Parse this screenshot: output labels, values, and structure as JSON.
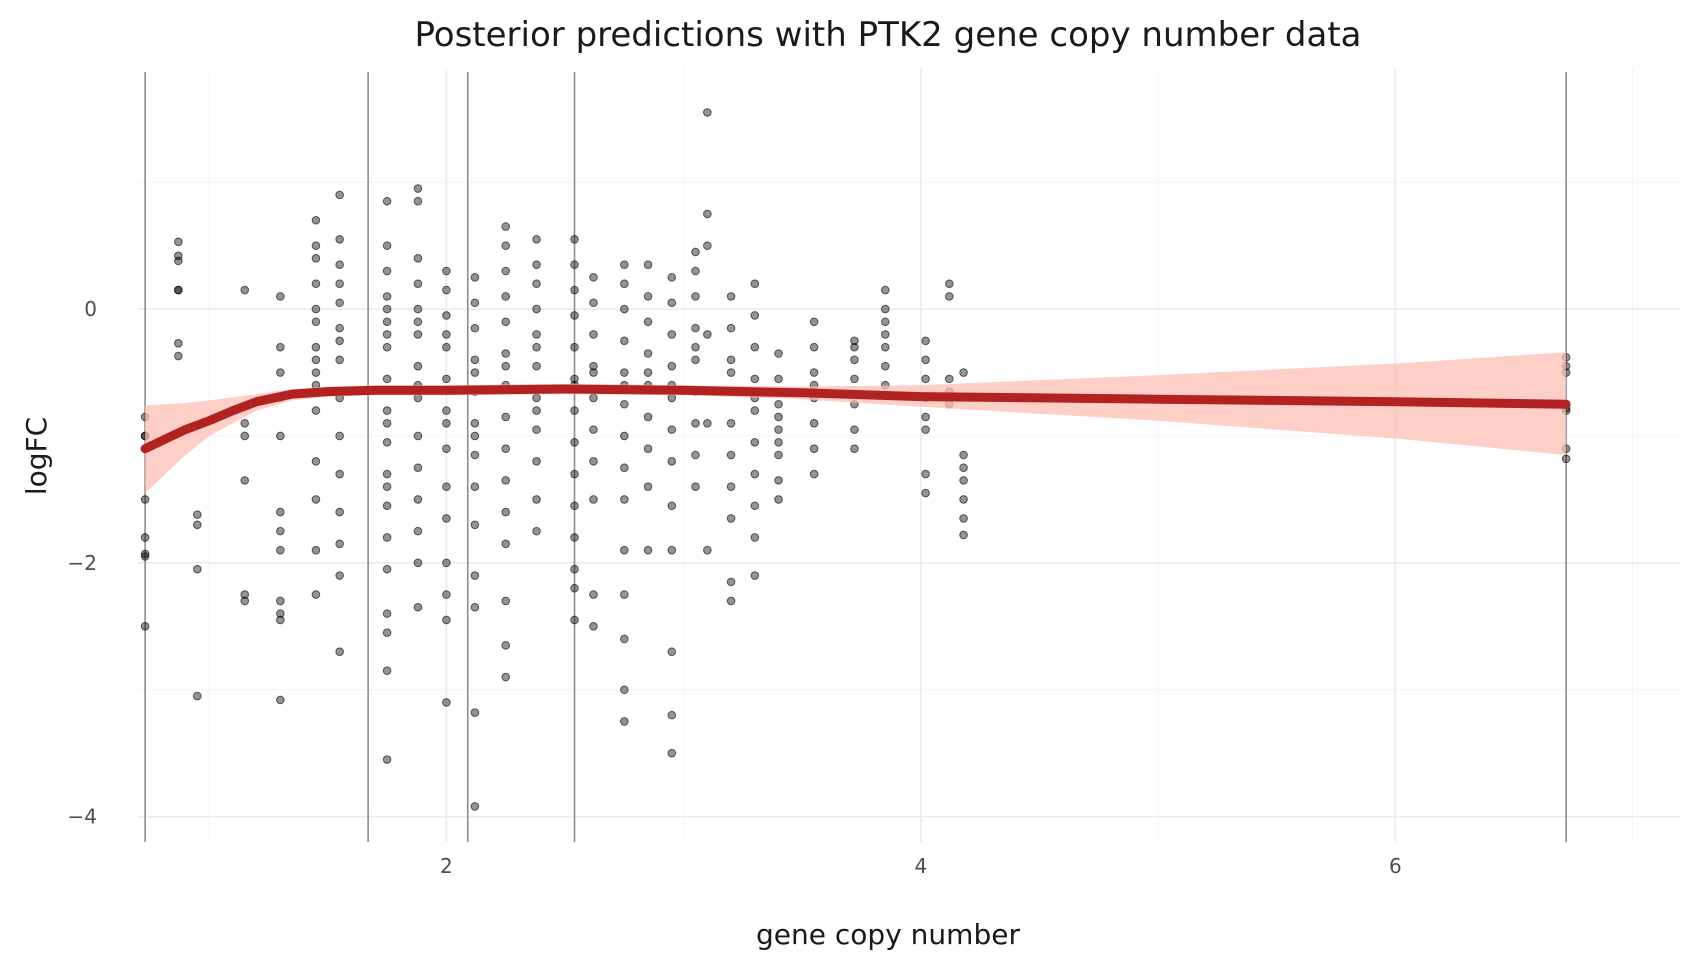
{
  "chart_data": {
    "type": "scatter",
    "title": "Posterior predictions with PTK2 gene copy number data",
    "xlabel": "gene copy number",
    "ylabel": "logFC",
    "xlim": [
      0.7,
      7.2
    ],
    "ylim": [
      -4.2,
      1.9
    ],
    "x_ticks": [
      2,
      4,
      6
    ],
    "y_ticks": [
      0,
      -2,
      -4
    ],
    "x_tick_labels": [
      "2",
      "4",
      "6"
    ],
    "y_tick_labels": [
      "0",
      "−2",
      "−4"
    ],
    "grid": true,
    "legend": "none",
    "colors": {
      "points": "#000000",
      "ribbon": "#fcbfb4",
      "trend_line": "#b22222",
      "vertical_lines": "#8c8c8c",
      "grid": "#ebebeb"
    },
    "vertical_lines": [
      0.73,
      1.67,
      2.09,
      2.54,
      6.72
    ],
    "trend_line": {
      "x": [
        0.73,
        0.9,
        1.0,
        1.1,
        1.2,
        1.35,
        1.5,
        1.7,
        2.0,
        2.5,
        3.0,
        3.5,
        4.0,
        5.0,
        6.0,
        6.72
      ],
      "y": [
        -1.1,
        -0.95,
        -0.88,
        -0.8,
        -0.73,
        -0.67,
        -0.65,
        -0.64,
        -0.64,
        -0.63,
        -0.64,
        -0.66,
        -0.69,
        -0.71,
        -0.73,
        -0.75
      ]
    },
    "ribbon": {
      "x": [
        0.73,
        0.9,
        1.0,
        1.2,
        1.35,
        1.5,
        1.7,
        2.0,
        2.5,
        3.0,
        3.5,
        4.0,
        5.0,
        6.0,
        6.72
      ],
      "lower": [
        -1.45,
        -1.15,
        -1.0,
        -0.8,
        -0.72,
        -0.69,
        -0.68,
        -0.68,
        -0.67,
        -0.68,
        -0.71,
        -0.77,
        -0.88,
        -1.02,
        -1.15
      ],
      "upper": [
        -0.76,
        -0.74,
        -0.72,
        -0.67,
        -0.63,
        -0.61,
        -0.6,
        -0.6,
        -0.59,
        -0.6,
        -0.61,
        -0.6,
        -0.52,
        -0.43,
        -0.34
      ]
    },
    "point_groups": [
      {
        "x": 0.73,
        "y": [
          -0.85,
          -1.0,
          -1.5,
          -1.8,
          -1.95,
          -2.5,
          -1.0,
          -1.93
        ]
      },
      {
        "x": 0.87,
        "y": [
          0.53,
          0.42,
          0.38,
          0.15,
          -0.27,
          -0.37,
          0.15
        ]
      },
      {
        "x": 0.95,
        "y": [
          -1.62,
          -1.7,
          -2.05,
          -3.05
        ]
      },
      {
        "x": 1.15,
        "y": [
          0.15,
          -0.9,
          -1.35,
          -2.25,
          -2.3,
          -1.0
        ]
      },
      {
        "x": 1.3,
        "y": [
          -0.7,
          -1.6,
          -2.3,
          -2.4,
          -3.08,
          -1.75,
          -0.3,
          0.1,
          -1.0,
          -0.5,
          -2.45,
          -1.9
        ]
      },
      {
        "x": 1.45,
        "y": [
          0.7,
          0.5,
          0.4,
          0.2,
          -0.1,
          -0.3,
          -0.5,
          -0.8,
          -1.2,
          -1.5,
          -1.9,
          -2.25,
          -0.6,
          0.0,
          -0.4
        ]
      },
      {
        "x": 1.55,
        "y": [
          0.9,
          0.55,
          0.35,
          0.05,
          -0.15,
          -0.4,
          -0.7,
          -1.0,
          -1.3,
          -1.6,
          -1.85,
          -2.1,
          -2.7,
          -0.25,
          0.2
        ]
      },
      {
        "x": 1.75,
        "y": [
          0.85,
          0.5,
          0.3,
          0.1,
          -0.1,
          -0.3,
          -0.55,
          -0.8,
          -1.05,
          -1.3,
          -1.55,
          -1.8,
          -2.05,
          -2.4,
          -2.55,
          -3.55,
          -2.85,
          -0.2,
          0.0,
          -1.4,
          -0.9
        ]
      },
      {
        "x": 1.88,
        "y": [
          0.95,
          0.85,
          0.4,
          0.2,
          0.0,
          -0.2,
          -0.45,
          -0.7,
          -1.0,
          -1.25,
          -1.5,
          -1.75,
          -2.0,
          -2.35,
          -0.6,
          -0.1
        ]
      },
      {
        "x": 2.0,
        "y": [
          0.3,
          0.15,
          -0.05,
          -0.3,
          -0.55,
          -0.8,
          -1.1,
          -1.4,
          -1.65,
          -2.0,
          -2.25,
          -2.45,
          -3.1,
          -0.9,
          -0.2
        ]
      },
      {
        "x": 2.12,
        "y": [
          0.25,
          0.05,
          -0.15,
          -0.4,
          -0.65,
          -0.9,
          -1.15,
          -1.4,
          -1.7,
          -2.1,
          -2.35,
          -3.18,
          -3.92,
          -1.0,
          -0.5
        ]
      },
      {
        "x": 2.25,
        "y": [
          0.65,
          0.5,
          0.3,
          0.1,
          -0.1,
          -0.35,
          -0.6,
          -0.85,
          -1.1,
          -1.35,
          -1.6,
          -1.85,
          -2.3,
          -2.65,
          -2.9,
          -0.45
        ]
      },
      {
        "x": 2.38,
        "y": [
          0.55,
          0.35,
          0.2,
          0.0,
          -0.2,
          -0.45,
          -0.7,
          -0.95,
          -1.2,
          -1.5,
          -1.75,
          -0.3,
          -0.8
        ]
      },
      {
        "x": 2.54,
        "y": [
          0.55,
          0.35,
          0.15,
          -0.05,
          -0.3,
          -0.55,
          -0.8,
          -1.05,
          -1.3,
          -1.55,
          -1.8,
          -2.05,
          -2.45,
          -2.2,
          -0.6
        ]
      },
      {
        "x": 2.62,
        "y": [
          0.25,
          0.05,
          -0.2,
          -0.45,
          -0.7,
          -0.95,
          -1.2,
          -1.5,
          -2.5,
          -2.25,
          -0.5
        ]
      },
      {
        "x": 2.75,
        "y": [
          0.35,
          0.2,
          0.0,
          -0.25,
          -0.5,
          -0.75,
          -1.0,
          -1.25,
          -1.5,
          -1.9,
          -2.25,
          -2.6,
          -3.0,
          -3.25,
          -0.6
        ]
      },
      {
        "x": 2.85,
        "y": [
          0.35,
          0.1,
          -0.1,
          -0.35,
          -0.6,
          -0.85,
          -1.1,
          -1.4,
          -1.9,
          -0.5
        ]
      },
      {
        "x": 2.95,
        "y": [
          0.25,
          0.05,
          -0.2,
          -0.45,
          -0.7,
          -0.95,
          -1.2,
          -1.55,
          -1.9,
          -2.7,
          -3.2,
          -3.5,
          -0.6
        ]
      },
      {
        "x": 3.05,
        "y": [
          0.45,
          0.3,
          0.1,
          -0.15,
          -0.4,
          -0.65,
          -0.9,
          -1.15,
          -1.4,
          -0.3
        ]
      },
      {
        "x": 3.1,
        "y": [
          1.55,
          0.75,
          0.5,
          -0.2,
          -0.9,
          -1.9
        ]
      },
      {
        "x": 3.2,
        "y": [
          0.1,
          -0.15,
          -0.4,
          -0.65,
          -0.9,
          -1.15,
          -1.4,
          -1.65,
          -2.15,
          -2.3,
          -0.5
        ]
      },
      {
        "x": 3.3,
        "y": [
          0.2,
          -0.05,
          -0.3,
          -0.55,
          -0.8,
          -1.05,
          -1.3,
          -1.55,
          -1.8,
          -2.1,
          -0.7
        ]
      },
      {
        "x": 3.4,
        "y": [
          -0.35,
          -0.55,
          -0.75,
          -0.95,
          -1.15,
          -1.35,
          -1.5,
          -0.85,
          -1.05
        ]
      },
      {
        "x": 3.55,
        "y": [
          -0.1,
          -0.3,
          -0.5,
          -0.7,
          -0.9,
          -1.1,
          -1.3,
          -0.6
        ]
      },
      {
        "x": 3.72,
        "y": [
          -0.25,
          -0.4,
          -0.55,
          -0.75,
          -0.95,
          -1.1,
          -0.3
        ]
      },
      {
        "x": 3.85,
        "y": [
          0.15,
          0.0,
          -0.1,
          -0.2,
          -0.3,
          -0.45,
          -0.6
        ]
      },
      {
        "x": 4.02,
        "y": [
          -0.25,
          -0.4,
          -0.55,
          -0.7,
          -0.85,
          -0.95,
          -1.3,
          -1.45
        ]
      },
      {
        "x": 4.12,
        "y": [
          0.2,
          0.1,
          -0.55,
          -0.65,
          -0.75
        ]
      },
      {
        "x": 4.18,
        "y": [
          -1.15,
          -1.25,
          -1.35,
          -1.5,
          -1.65,
          -1.78,
          -0.5
        ]
      },
      {
        "x": 6.72,
        "y": [
          -0.38,
          -0.45,
          -0.5,
          -0.8,
          -1.1,
          -1.18,
          -0.78
        ]
      }
    ]
  }
}
